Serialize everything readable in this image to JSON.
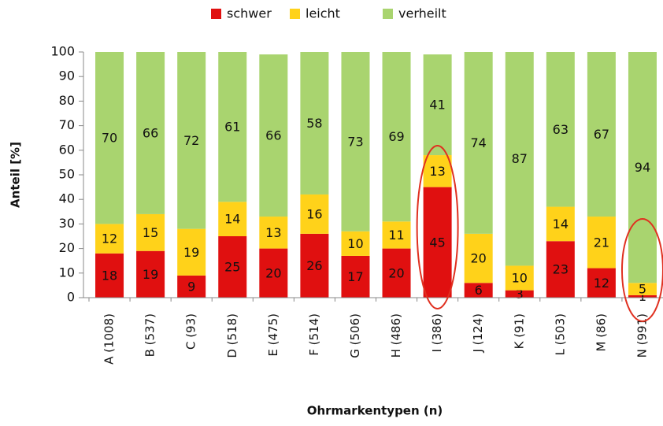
{
  "chart_data": {
    "type": "stacked_bar",
    "categories": [
      "A (1008)",
      "B (537)",
      "C (93)",
      "D (518)",
      "E (475)",
      "F (514)",
      "G (506)",
      "H (486)",
      "I (386)",
      "J (124)",
      "K (91)",
      "L (503)",
      "M (86)",
      "N (991)"
    ],
    "series": [
      {
        "name": "schwer",
        "color": "#e01010",
        "values": [
          18,
          19,
          9,
          25,
          20,
          26,
          17,
          20,
          45,
          6,
          3,
          23,
          12,
          1
        ]
      },
      {
        "name": "leicht",
        "color": "#ffd21a",
        "values": [
          12,
          15,
          19,
          14,
          13,
          16,
          10,
          11,
          13,
          20,
          10,
          14,
          21,
          5
        ]
      },
      {
        "name": "verheilt",
        "color": "#a9d46f",
        "values": [
          70,
          66,
          72,
          61,
          66,
          58,
          73,
          69,
          41,
          74,
          87,
          63,
          67,
          94
        ]
      }
    ],
    "ylim": [
      0,
      100
    ],
    "yticks": [
      0,
      10,
      20,
      30,
      40,
      50,
      60,
      70,
      80,
      90,
      100
    ],
    "ylabel": "Anteil [%]",
    "xlabel": "Ohrmarkentypen (n)",
    "legend": "top"
  }
}
